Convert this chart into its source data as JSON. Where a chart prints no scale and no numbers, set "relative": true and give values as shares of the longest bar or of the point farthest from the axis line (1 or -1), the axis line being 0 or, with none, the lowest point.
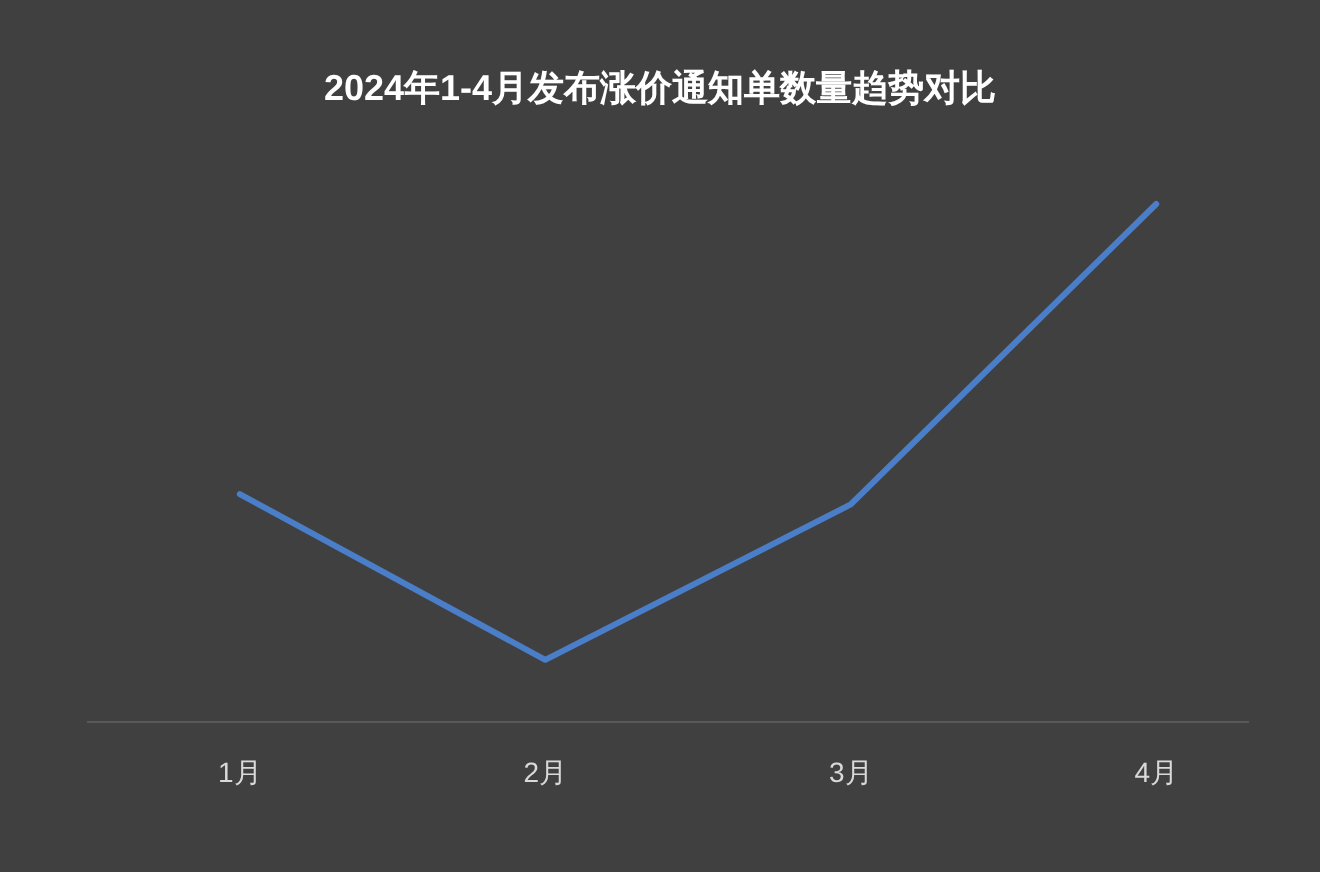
{
  "chart_data": {
    "type": "line",
    "title": "2024年1-4月发布涨价通知单数量趋势对比",
    "categories": [
      "1月",
      "2月",
      "3月",
      "4月"
    ],
    "relative": true,
    "series": [
      {
        "color": "#4a7ec8",
        "values": [
          0.44,
          0.12,
          0.42,
          1
        ]
      }
    ],
    "marker": "none",
    "line_style": "solid"
  }
}
